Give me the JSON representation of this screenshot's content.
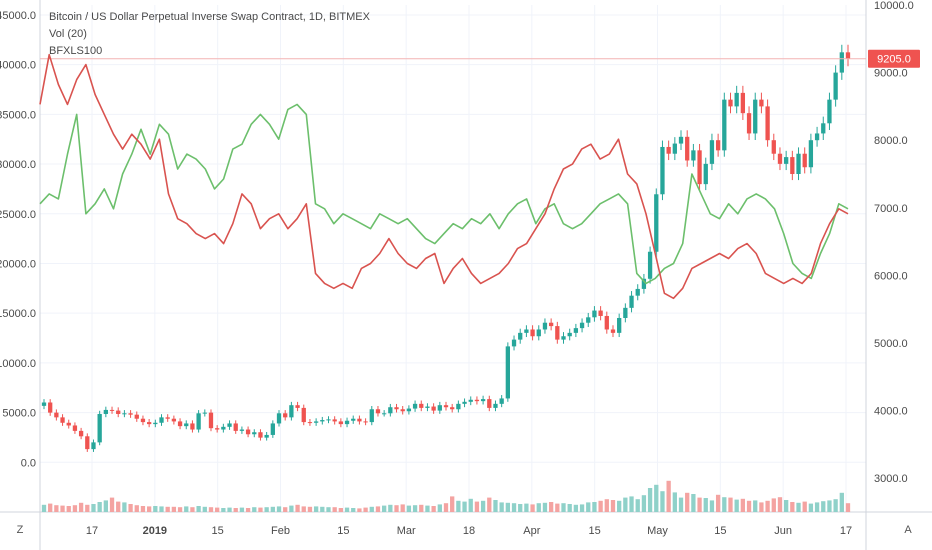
{
  "legend": {
    "title": "Bitcoin / US Dollar Perpetual Inverse Swap Contract, 1D, BITMEX",
    "vol": "Vol (20)",
    "overlay": "BFXLS100"
  },
  "axis_buttons": {
    "left": "Z",
    "right": "A"
  },
  "colors": {
    "up": "#26a69a",
    "down": "#ef5350",
    "vol_up": "#8fd1c9",
    "vol_down": "#f4a3a1",
    "longs_line": "#6cbf6c",
    "shorts_line": "#d9534f",
    "price_line": "#f4b4b4",
    "price_label_bg": "#ef5350",
    "grid": "#f0f3fa",
    "axis_text": "#4a4a4a"
  },
  "chart_data": {
    "type": "line",
    "x_tick_labels": [
      "17",
      "2019",
      "15",
      "Feb",
      "15",
      "Mar",
      "18",
      "Apr",
      "15",
      "May",
      "15",
      "Jun",
      "17"
    ],
    "x_tick_bold": [
      "2019"
    ],
    "left_axis_ticks": [
      "45000.0",
      "40000.0",
      "35000.0",
      "30000.0",
      "25000.0",
      "20000.0",
      "15000.0",
      "10000.0",
      "5000.0",
      "0.0"
    ],
    "right_axis_ticks": [
      "10000.0",
      "9000.0",
      "8000.0",
      "7000.0",
      "6000.0",
      "5000.0",
      "4000.0",
      "3000.0"
    ],
    "left_ylim": [
      -5000,
      46000
    ],
    "right_ylim": [
      2500,
      10000
    ],
    "last_price_label": "9205.0",
    "last_price": 9205,
    "candles_close": [
      4120,
      3970,
      3900,
      3820,
      3780,
      3700,
      3620,
      3430,
      3530,
      3950,
      4010,
      4000,
      3950,
      3960,
      3940,
      3880,
      3830,
      3800,
      3820,
      3900,
      3880,
      3840,
      3770,
      3810,
      3720,
      3960,
      3970,
      3740,
      3720,
      3760,
      3810,
      3700,
      3720,
      3650,
      3680,
      3600,
      3640,
      3810,
      3960,
      3900,
      4080,
      4040,
      3830,
      3820,
      3840,
      3860,
      3870,
      3840,
      3800,
      3850,
      3880,
      3840,
      3830,
      4020,
      3960,
      3960,
      4050,
      4020,
      3990,
      4030,
      4100,
      4040,
      4060,
      4000,
      4080,
      4050,
      4020,
      4100,
      4130,
      4160,
      4140,
      4170,
      4040,
      4100,
      4180,
      4950,
      5050,
      5150,
      5200,
      5100,
      5200,
      5300,
      5250,
      5050,
      5100,
      5150,
      5220,
      5300,
      5380,
      5480,
      5400,
      5200,
      5150,
      5370,
      5520,
      5700,
      5800,
      5950,
      6350,
      7200,
      7900,
      7800,
      7950,
      8050,
      7700,
      7850,
      7350,
      7650,
      8000,
      7850,
      8600,
      8500,
      8700,
      8400,
      8100,
      8600,
      8500,
      8000,
      7800,
      7650,
      7750,
      7500,
      7800,
      7600,
      8000,
      8100,
      8250,
      8600,
      9000,
      9300,
      9205
    ],
    "longs_series": [
      26000,
      27000,
      26500,
      31000,
      35000,
      25000,
      26000,
      27500,
      25500,
      29000,
      31000,
      33500,
      31000,
      34000,
      33000,
      29500,
      31000,
      30500,
      29500,
      27500,
      28500,
      31500,
      32000,
      34000,
      35000,
      34000,
      32500,
      35500,
      36000,
      35000,
      26000,
      25500,
      24000,
      25000,
      24500,
      24000,
      23500,
      25000,
      24500,
      24000,
      24500,
      23500,
      22500,
      22000,
      23000,
      24000,
      23500,
      24500,
      24000,
      25000,
      23500,
      25000,
      26000,
      26500,
      24000,
      25500,
      26000,
      24000,
      23500,
      24000,
      25000,
      26000,
      26500,
      27000,
      26000,
      19000,
      18000,
      18500,
      19500,
      20000,
      22000,
      29000,
      27000,
      25000,
      24500,
      26000,
      25000,
      26500,
      27000,
      26500,
      25500,
      23000,
      20000,
      19000,
      18500,
      21000,
      23000,
      26000,
      25500
    ],
    "shorts_series": [
      36000,
      41000,
      38000,
      36000,
      38500,
      40000,
      37000,
      35000,
      33000,
      31500,
      33000,
      32000,
      30500,
      32500,
      27000,
      24500,
      24000,
      23000,
      22500,
      23000,
      22000,
      24000,
      27000,
      26000,
      23500,
      24500,
      25000,
      23500,
      24500,
      26000,
      19000,
      18000,
      17500,
      18000,
      17500,
      19500,
      20000,
      21000,
      22500,
      21000,
      20000,
      19500,
      20500,
      21000,
      18000,
      19500,
      20500,
      19000,
      18000,
      18500,
      19000,
      20000,
      21500,
      22000,
      23500,
      25000,
      27500,
      29500,
      30000,
      31500,
      32000,
      30500,
      31000,
      32500,
      29000,
      28000,
      25000,
      21000,
      17000,
      16500,
      17500,
      19500,
      20000,
      20500,
      21000,
      20500,
      21500,
      22000,
      21000,
      19000,
      18500,
      18000,
      18500,
      18000,
      19000,
      22000,
      24000,
      25500,
      25000
    ],
    "volume_series": [
      1800,
      2100,
      1700,
      1600,
      1500,
      1700,
      2300,
      1800,
      2000,
      2500,
      2900,
      3600,
      2600,
      2400,
      2000,
      1700,
      1500,
      1400,
      1500,
      1400,
      1300,
      1300,
      1200,
      1400,
      1200,
      1500,
      1300,
      1200,
      1100,
      1000,
      1100,
      1000,
      1100,
      1000,
      1200,
      1100,
      1200,
      1300,
      1400,
      1200,
      1600,
      1800,
      1400,
      1300,
      1400,
      1300,
      1200,
      1200,
      1000,
      1100,
      1000,
      900,
      1100,
      1300,
      1400,
      1600,
      1800,
      1700,
      1900,
      1600,
      1700,
      1800,
      1600,
      1500,
      1900,
      2200,
      3900,
      2800,
      2600,
      3300,
      2600,
      2800,
      3600,
      3000,
      2400,
      2300,
      2200,
      2000,
      2100,
      1900,
      2200,
      2300,
      2500,
      2100,
      2200,
      2000,
      1800,
      1900,
      2400,
      2500,
      2800,
      3200,
      3000,
      2800,
      3600,
      3900,
      3200,
      4200,
      6000,
      6800,
      5200,
      7800,
      4900,
      3600,
      4800,
      4500,
      3600,
      3500,
      2900,
      4300,
      3700,
      3600,
      3100,
      3300,
      2800,
      2900,
      2400,
      2800,
      3400,
      3700,
      3000,
      2500,
      2300,
      2600,
      2100,
      2400,
      2700,
      2900,
      3200,
      4800,
      2200
    ]
  }
}
